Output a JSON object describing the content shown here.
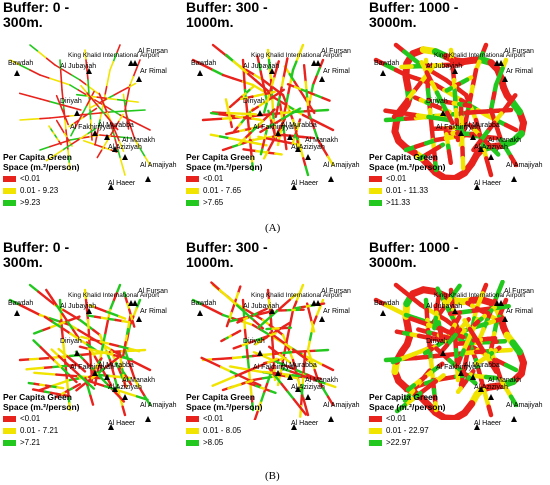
{
  "captions": [
    "(A)",
    "(B)"
  ],
  "legend_title": "Per Capita Green\nSpace (m.²/person)",
  "colors": {
    "low": "#e8221c",
    "mid": "#f0e400",
    "high": "#22c81e"
  },
  "panels": [
    {
      "title": "Buffer: 0 -\n300m.",
      "labels": [
        "<0.01",
        "0.01 - 9.23",
        ">9.23"
      ]
    },
    {
      "title": "Buffer: 300 -\n1000m.",
      "labels": [
        "<0.01",
        "0.01 - 7.65",
        ">7.65"
      ]
    },
    {
      "title": "Buffer: 1000 -\n3000m.",
      "labels": [
        "<0.01",
        "0.01 - 11.33",
        ">11.33"
      ]
    },
    {
      "title": "Buffer: 0 -\n300m.",
      "labels": [
        "<0.01",
        "0.01 - 7.21",
        ">7.21"
      ]
    },
    {
      "title": "Buffer: 300 -\n1000m.",
      "labels": [
        "<0.01",
        "0.01 - 8.05",
        ">8.05"
      ]
    },
    {
      "title": "Buffer: 1000 -\n3000m.",
      "labels": [
        "<0.01",
        "0.01 - 22.97",
        ">22.97"
      ]
    }
  ],
  "places": [
    "Bawdah",
    "King Khalid International Airport",
    "Al Fursan",
    "Al Jubayiah",
    "Ar Rimal",
    "Diriyah",
    "Al Fakhiriyyah",
    "Al Murabba",
    "Al Manakh",
    "Al Aziziyah",
    "Al Haeer",
    "Al Amajiyah"
  ]
}
